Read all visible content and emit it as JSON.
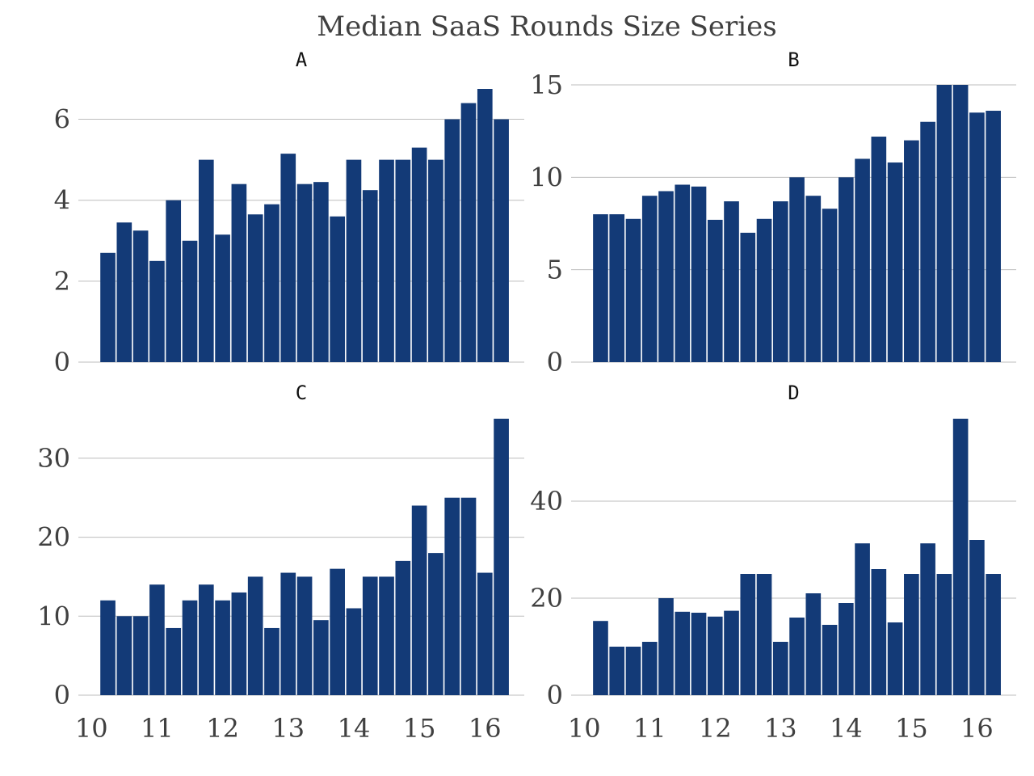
{
  "title": "Median SaaS Rounds Size  Series",
  "colors": {
    "bar": "#133a77",
    "grid": "#bdbdbd",
    "text": "#404040"
  },
  "chart_data": [
    {
      "type": "bar",
      "title": "A",
      "grid": true,
      "x": [
        10.25,
        10.5,
        10.75,
        11.0,
        11.25,
        11.5,
        11.75,
        12.0,
        12.25,
        12.5,
        12.75,
        13.0,
        13.25,
        13.5,
        13.75,
        14.0,
        14.25,
        14.5,
        14.75,
        15.0,
        15.25,
        15.5,
        15.75,
        16.0,
        16.25
      ],
      "values": [
        2.7,
        3.45,
        3.25,
        2.5,
        4.0,
        3.0,
        5.0,
        3.15,
        4.4,
        3.65,
        3.9,
        5.15,
        4.4,
        4.45,
        3.6,
        5.0,
        4.25,
        5.0,
        5.0,
        5.3,
        5.0,
        6.0,
        6.4,
        6.75,
        6.0
      ],
      "xticks": [],
      "yticks": [
        "0",
        "2",
        "4",
        "6"
      ],
      "ylim": [
        0,
        6.85
      ]
    },
    {
      "type": "bar",
      "title": "B",
      "grid": true,
      "x": [
        10.25,
        10.5,
        10.75,
        11.0,
        11.25,
        11.5,
        11.75,
        12.0,
        12.25,
        12.5,
        12.75,
        13.0,
        13.25,
        13.5,
        13.75,
        14.0,
        14.25,
        14.5,
        14.75,
        15.0,
        15.25,
        15.5,
        15.75,
        16.0,
        16.25
      ],
      "values": [
        8.0,
        8.0,
        7.75,
        9.0,
        9.25,
        9.6,
        9.5,
        7.7,
        8.7,
        7.0,
        7.75,
        8.7,
        10.0,
        9.0,
        8.3,
        10.0,
        11.0,
        12.2,
        10.8,
        12.0,
        13.0,
        15.0,
        15.0,
        13.5,
        13.6
      ],
      "xticks": [],
      "yticks": [
        "0",
        "5",
        "10",
        "15"
      ],
      "ylim": [
        0,
        15
      ]
    },
    {
      "type": "bar",
      "title": "C",
      "grid": true,
      "x": [
        10.25,
        10.5,
        10.75,
        11.0,
        11.25,
        11.5,
        11.75,
        12.0,
        12.25,
        12.5,
        12.75,
        13.0,
        13.25,
        13.5,
        13.75,
        14.0,
        14.25,
        14.5,
        14.75,
        15.0,
        15.25,
        15.5,
        15.75,
        16.0,
        16.25
      ],
      "values": [
        12.0,
        10.0,
        10.0,
        14.0,
        8.5,
        12.0,
        14.0,
        12.0,
        13.0,
        15.0,
        8.5,
        15.5,
        15.0,
        9.5,
        16.0,
        11.0,
        15.0,
        15.0,
        17.0,
        24.0,
        18.0,
        25.0,
        25.0,
        15.5,
        35.0
      ],
      "xticks": [
        "10",
        "11",
        "12",
        "13",
        "14",
        "15",
        "16"
      ],
      "yticks": [
        "0",
        "10",
        "20",
        "30"
      ],
      "ylim": [
        0,
        35
      ]
    },
    {
      "type": "bar",
      "title": "D",
      "grid": true,
      "x": [
        10.25,
        10.5,
        10.75,
        11.0,
        11.25,
        11.5,
        11.75,
        12.0,
        12.25,
        12.5,
        12.75,
        13.0,
        13.25,
        13.5,
        13.75,
        14.0,
        14.25,
        14.5,
        14.75,
        15.0,
        15.25,
        15.5,
        15.75,
        16.0,
        16.25
      ],
      "values": [
        15.3,
        10.0,
        10.0,
        11.0,
        20.0,
        17.2,
        17.0,
        16.2,
        17.4,
        25.0,
        25.0,
        11.0,
        16.0,
        21.0,
        14.5,
        19.0,
        31.3,
        26.0,
        15.0,
        25.0,
        31.3,
        25.0,
        57.0,
        32.0,
        25.0
      ],
      "xticks": [
        "10",
        "11",
        "12",
        "13",
        "14",
        "15",
        "16"
      ],
      "yticks": [
        "0",
        "20",
        "40"
      ],
      "ylim": [
        0,
        57
      ]
    }
  ]
}
